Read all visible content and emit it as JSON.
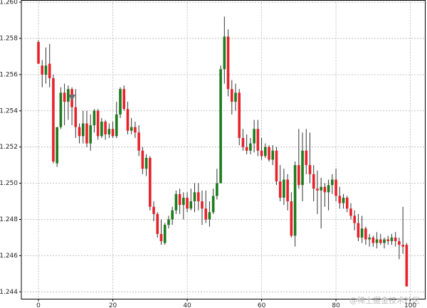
{
  "chart_data": {
    "type": "candlestick",
    "x": [
      0,
      1,
      2,
      3,
      4,
      5,
      6,
      7,
      8,
      9,
      10,
      11,
      12,
      13,
      14,
      15,
      16,
      17,
      18,
      19,
      20,
      21,
      22,
      23,
      24,
      25,
      26,
      27,
      28,
      29,
      30,
      31,
      32,
      33,
      34,
      35,
      36,
      37,
      38,
      39,
      40,
      41,
      42,
      43,
      44,
      45,
      46,
      47,
      48,
      49,
      50,
      51,
      52,
      53,
      54,
      55,
      56,
      57,
      58,
      59,
      60,
      61,
      62,
      63,
      64,
      65,
      66,
      67,
      68,
      69,
      70,
      71,
      72,
      73,
      74,
      75,
      76,
      77,
      78,
      79,
      80,
      81,
      82,
      83,
      84,
      85,
      86,
      87,
      88,
      89,
      90,
      91,
      92,
      93,
      94,
      95,
      96,
      97,
      98,
      99
    ],
    "open": [
      1.2578,
      1.2565,
      1.256,
      1.2566,
      1.2558,
      1.2511,
      1.2531,
      1.255,
      1.2545,
      1.2552,
      1.2542,
      1.2531,
      1.2526,
      1.2533,
      1.2522,
      1.2532,
      1.254,
      1.2526,
      1.2534,
      1.2527,
      1.253,
      1.2526,
      1.2538,
      1.2552,
      1.2541,
      1.2529,
      1.2531,
      1.2528,
      1.2518,
      1.2508,
      1.2514,
      1.2487,
      1.2483,
      1.2472,
      1.2467,
      1.2477,
      1.248,
      1.2485,
      1.2494,
      1.2488,
      1.2492,
      1.2486,
      1.249,
      1.2495,
      1.249,
      1.2486,
      1.248,
      1.2484,
      1.2493,
      1.25,
      1.2563,
      1.2581,
      1.2552,
      1.2545,
      1.255,
      1.2525,
      1.252,
      1.2518,
      1.2522,
      1.253,
      1.2518,
      1.2515,
      1.252,
      1.2513,
      1.2518,
      1.2501,
      1.2492,
      1.2502,
      1.249,
      1.2471,
      1.251,
      1.2499,
      1.2518,
      1.251,
      1.2505,
      1.2497,
      1.2496,
      1.2498,
      1.2495,
      1.2499,
      1.2502,
      1.2493,
      1.2489,
      1.2492,
      1.2486,
      1.2482,
      1.2478,
      1.247,
      1.2475,
      1.2469,
      1.247,
      1.2467,
      1.2469,
      1.2467,
      1.2469,
      1.2468,
      1.247,
      1.2468,
      1.2466,
      1.2466
    ],
    "high": [
      1.2579,
      1.2568,
      1.2575,
      1.2577,
      1.256,
      1.2531,
      1.2553,
      1.2555,
      1.2554,
      1.2553,
      1.2552,
      1.2533,
      1.254,
      1.254,
      1.2538,
      1.2541,
      1.2541,
      1.2536,
      1.2535,
      1.2533,
      1.2534,
      1.2545,
      1.2553,
      1.2554,
      1.2545,
      1.2536,
      1.2534,
      1.2532,
      1.252,
      1.2516,
      1.2515,
      1.249,
      1.2484,
      1.248,
      1.2478,
      1.2482,
      1.2487,
      1.2496,
      1.2497,
      1.2495,
      1.2495,
      1.2497,
      1.25,
      1.25,
      1.2496,
      1.2496,
      1.249,
      1.2497,
      1.2508,
      1.2565,
      1.2592,
      1.2585,
      1.2557,
      1.2555,
      1.2552,
      1.253,
      1.2527,
      1.2525,
      1.2535,
      1.2535,
      1.2525,
      1.2522,
      1.2521,
      1.2521,
      1.252,
      1.251,
      1.2508,
      1.2505,
      1.2495,
      1.2512,
      1.253,
      1.2528,
      1.253,
      1.2528,
      1.251,
      1.2507,
      1.2503,
      1.25,
      1.2502,
      1.2505,
      1.2508,
      1.2498,
      1.2494,
      1.2493,
      1.2489,
      1.2485,
      1.2483,
      1.2482,
      1.2476,
      1.2472,
      1.2471,
      1.2473,
      1.2472,
      1.247,
      1.2471,
      1.2472,
      1.2473,
      1.247,
      1.2487,
      1.2467
    ],
    "low": [
      1.2566,
      1.2553,
      1.2555,
      1.2553,
      1.2511,
      1.2509,
      1.253,
      1.2532,
      1.2535,
      1.2532,
      1.2525,
      1.2522,
      1.2522,
      1.252,
      1.2518,
      1.2528,
      1.2524,
      1.2525,
      1.2524,
      1.2525,
      1.2525,
      1.2525,
      1.2536,
      1.254,
      1.2527,
      1.2527,
      1.2525,
      1.2515,
      1.2505,
      1.2504,
      1.2485,
      1.2479,
      1.247,
      1.2466,
      1.2466,
      1.2475,
      1.2477,
      1.2483,
      1.2483,
      1.248,
      1.2484,
      1.2485,
      1.2484,
      1.2485,
      1.2477,
      1.2478,
      1.2476,
      1.2483,
      1.2491,
      1.25,
      1.2555,
      1.2548,
      1.2538,
      1.254,
      1.2521,
      1.2518,
      1.2516,
      1.2516,
      1.2517,
      1.2515,
      1.2513,
      1.2514,
      1.2512,
      1.251,
      1.2499,
      1.249,
      1.2488,
      1.2485,
      1.247,
      1.2465,
      1.2497,
      1.249,
      1.2505,
      1.25,
      1.249,
      1.2483,
      1.2475,
      1.2487,
      1.2485,
      1.2494,
      1.249,
      1.2486,
      1.2486,
      1.2484,
      1.248,
      1.2474,
      1.2468,
      1.2467,
      1.2466,
      1.2465,
      1.2465,
      1.2464,
      1.2466,
      1.2464,
      1.2466,
      1.2466,
      1.2465,
      1.2458,
      1.2461,
      1.2443
    ],
    "close": [
      1.2566,
      1.256,
      1.2565,
      1.2558,
      1.2512,
      1.2531,
      1.255,
      1.2545,
      1.2552,
      1.2542,
      1.2531,
      1.2526,
      1.2533,
      1.2522,
      1.2532,
      1.254,
      1.2526,
      1.2534,
      1.2527,
      1.253,
      1.2526,
      1.2538,
      1.2552,
      1.2541,
      1.2529,
      1.2531,
      1.2528,
      1.2518,
      1.2508,
      1.2514,
      1.2487,
      1.2483,
      1.2472,
      1.2468,
      1.2477,
      1.248,
      1.2485,
      1.2494,
      1.2488,
      1.2492,
      1.2486,
      1.249,
      1.2495,
      1.249,
      1.2486,
      1.248,
      1.2484,
      1.2493,
      1.25,
      1.2563,
      1.2581,
      1.2552,
      1.2545,
      1.255,
      1.2525,
      1.252,
      1.2518,
      1.2522,
      1.253,
      1.2518,
      1.2515,
      1.252,
      1.2513,
      1.2518,
      1.2501,
      1.2492,
      1.2502,
      1.249,
      1.2471,
      1.251,
      1.2499,
      1.2518,
      1.251,
      1.2505,
      1.2497,
      1.2496,
      1.2498,
      1.2495,
      1.2499,
      1.2502,
      1.2493,
      1.2489,
      1.2492,
      1.2486,
      1.2482,
      1.2478,
      1.247,
      1.2475,
      1.2469,
      1.247,
      1.2467,
      1.2469,
      1.2467,
      1.2469,
      1.2468,
      1.247,
      1.2468,
      1.2466,
      1.2465,
      1.2443
    ],
    "up_color": "#1e7b1e",
    "down_color": "#e8222b",
    "wick_color": "#333333",
    "markers": [
      {
        "x": 9,
        "y": 1.2547,
        "color": "#6e6e6e"
      }
    ],
    "xlim": [
      -4.6,
      104
    ],
    "ylim": [
      1.2436,
      1.2601
    ],
    "xticks": [
      0,
      20,
      40,
      60,
      80,
      100
    ],
    "yticks": [
      1.244,
      1.246,
      1.248,
      {
        "value": 1.25,
        "label": "1.250"
      },
      1.252,
      1.254,
      1.256,
      1.258,
      {
        "value": 1.26,
        "label": "1.260"
      }
    ],
    "grid": true,
    "watermark": "@稀土掘金技术社区"
  }
}
